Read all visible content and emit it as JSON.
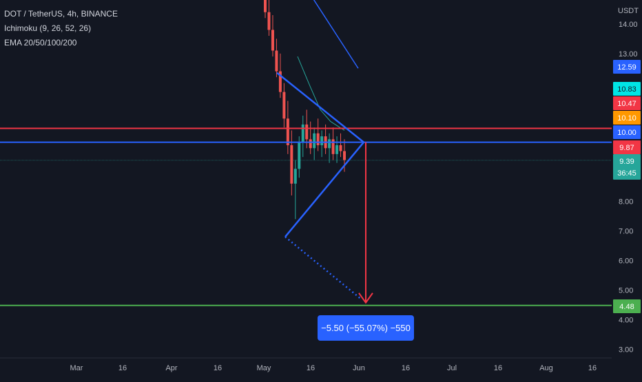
{
  "header": {
    "symbol_line": "DOT / TetherUS, 4h, BINANCE",
    "indicator_1": "Ichimoku (9, 26, 52, 26)",
    "indicator_2": "EMA 20/50/100/200"
  },
  "price_axis": {
    "unit": "USDT",
    "ticks": [
      "14.00",
      "13.00",
      "8.00",
      "7.00",
      "6.00",
      "5.00",
      "4.00",
      "3.00"
    ]
  },
  "price_badges": [
    {
      "value": "12.59",
      "color": "#2962ff"
    },
    {
      "value": "10.83",
      "color": "#00e5e5",
      "text_color": "#131722"
    },
    {
      "value": "10.47",
      "color": "#f23645"
    },
    {
      "value": "10.10",
      "color": "#ff9800"
    },
    {
      "value": "10.00",
      "color": "#2962ff"
    },
    {
      "value": "9.87",
      "color": "#f23645"
    },
    {
      "value": "9.39",
      "sub": "36:45",
      "color": "#26a69a"
    },
    {
      "value": "4.48",
      "color": "#4caf50"
    }
  ],
  "time_axis": {
    "labels": [
      "Mar",
      "16",
      "Apr",
      "16",
      "May",
      "16",
      "Jun",
      "16",
      "Jul",
      "16",
      "Aug",
      "16"
    ]
  },
  "measure": {
    "label": "−5.50 (−55.07%) −550"
  },
  "colors": {
    "background": "#131722",
    "red_line": "#f23645",
    "blue_line": "#2962ff",
    "green_line": "#4caf50",
    "up_candle": "#26a69a",
    "down_candle": "#ef5350"
  },
  "chart_data": {
    "type": "candlestick",
    "ylim": [
      2.7,
      14.8
    ],
    "horizontal_levels": [
      {
        "value": 10.47,
        "color": "#f23645"
      },
      {
        "value": 10.0,
        "color": "#2962ff"
      },
      {
        "value": 4.48,
        "color": "#4caf50"
      }
    ],
    "pattern": {
      "upper_trendline": [
        [
          402,
          12.35
        ],
        [
          528,
          10.0
        ]
      ],
      "lower_trendline": [
        [
          414,
          6.8
        ],
        [
          528,
          10.0
        ]
      ],
      "dotted_projection": [
        [
          414,
          6.8
        ],
        [
          524,
          4.7
        ]
      ],
      "target_arrow": {
        "from": 10.0,
        "to": 4.48
      }
    },
    "candles": [
      {
        "o": 15.2,
        "h": 15.6,
        "l": 14.2,
        "c": 14.4
      },
      {
        "o": 14.4,
        "h": 15.0,
        "l": 13.6,
        "c": 13.8
      },
      {
        "o": 13.8,
        "h": 14.3,
        "l": 12.9,
        "c": 13.1
      },
      {
        "o": 13.1,
        "h": 13.5,
        "l": 12.2,
        "c": 12.4
      },
      {
        "o": 12.4,
        "h": 13.0,
        "l": 11.5,
        "c": 11.7
      },
      {
        "o": 11.7,
        "h": 12.0,
        "l": 10.5,
        "c": 10.8
      },
      {
        "o": 10.8,
        "h": 11.4,
        "l": 9.6,
        "c": 9.9
      },
      {
        "o": 9.9,
        "h": 10.4,
        "l": 8.2,
        "c": 8.6
      },
      {
        "o": 8.6,
        "h": 9.4,
        "l": 7.4,
        "c": 9.1
      },
      {
        "o": 9.1,
        "h": 10.2,
        "l": 8.8,
        "c": 10.0
      },
      {
        "o": 10.0,
        "h": 10.9,
        "l": 9.5,
        "c": 10.6
      },
      {
        "o": 10.6,
        "h": 11.1,
        "l": 9.8,
        "c": 10.1
      },
      {
        "o": 10.1,
        "h": 10.7,
        "l": 9.6,
        "c": 9.8
      },
      {
        "o": 9.8,
        "h": 10.5,
        "l": 9.4,
        "c": 10.3
      },
      {
        "o": 10.3,
        "h": 10.8,
        "l": 9.7,
        "c": 9.9
      },
      {
        "o": 9.9,
        "h": 10.4,
        "l": 9.5,
        "c": 10.2
      },
      {
        "o": 10.2,
        "h": 10.6,
        "l": 9.6,
        "c": 9.8
      },
      {
        "o": 9.8,
        "h": 10.3,
        "l": 9.3,
        "c": 10.1
      },
      {
        "o": 10.1,
        "h": 10.5,
        "l": 9.4,
        "c": 9.6
      },
      {
        "o": 9.6,
        "h": 10.2,
        "l": 9.3,
        "c": 9.9
      },
      {
        "o": 9.9,
        "h": 10.3,
        "l": 9.5,
        "c": 9.7
      },
      {
        "o": 9.7,
        "h": 10.1,
        "l": 9.0,
        "c": 9.4
      }
    ]
  }
}
